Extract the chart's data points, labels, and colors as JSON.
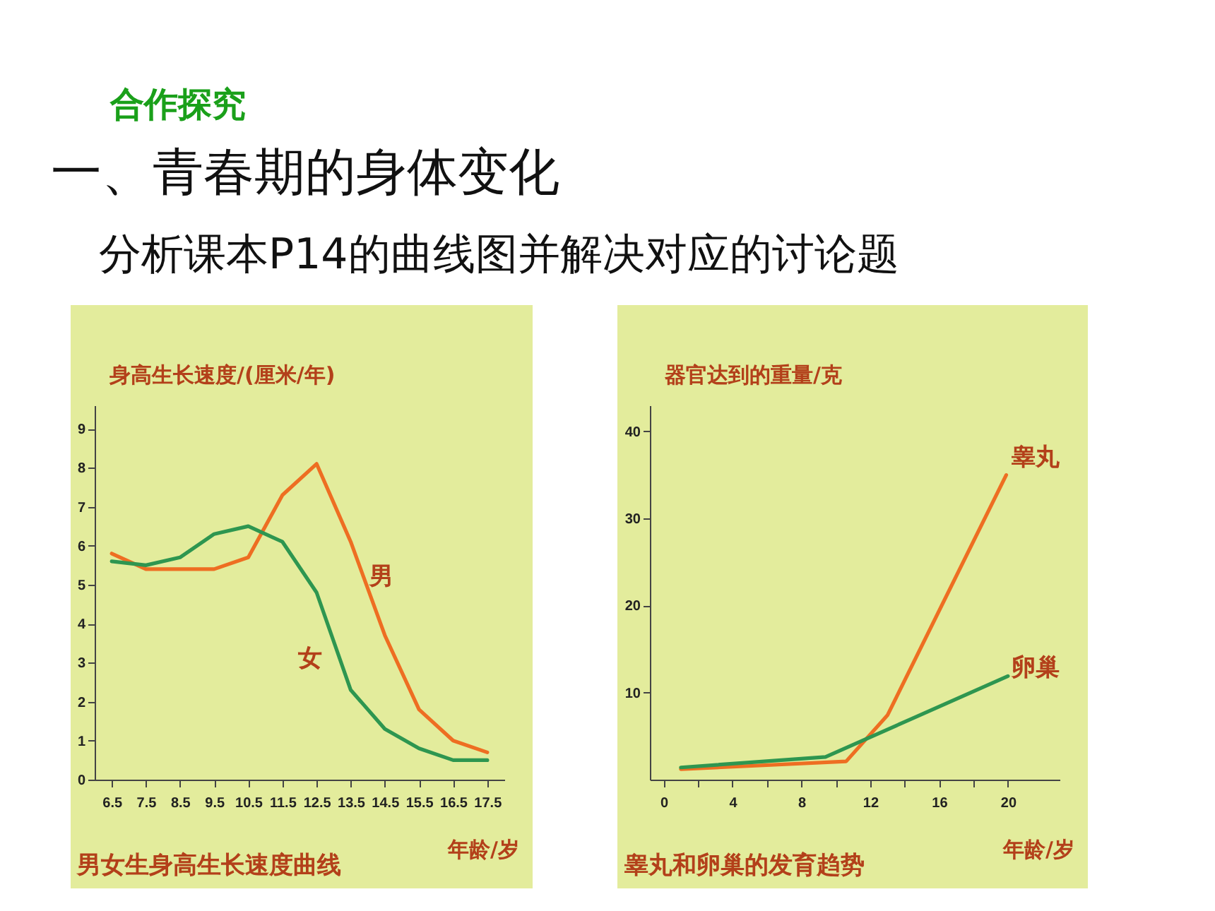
{
  "chart_data": [
    {
      "type": "line",
      "title": "男女生身高生长速度曲线",
      "annotations": [
        "合作探究",
        "一、青春期的身体变化",
        "分析课本P14的曲线图并解决对应的讨论题"
      ],
      "xlabel": "年龄/岁",
      "ylabel": "身高生长速度/(厘米/年)",
      "x": [
        6.5,
        7.5,
        8.5,
        9.5,
        10.5,
        11.5,
        12.5,
        13.5,
        14.5,
        15.5,
        16.5,
        17.5
      ],
      "xlim": [
        6.0,
        18.0
      ],
      "xticks": [
        6.5,
        7.5,
        8.5,
        9.5,
        10.5,
        11.5,
        12.5,
        13.5,
        14.5,
        15.5,
        16.5,
        17.5
      ],
      "ylim": [
        0,
        9.6
      ],
      "yticks": [
        0,
        1,
        2,
        3,
        4,
        5,
        6,
        7,
        8,
        9
      ],
      "grid": false,
      "legend": false,
      "line_style": "solid",
      "series": [
        {
          "name": "男",
          "color": "#ee6e22",
          "values": [
            5.8,
            5.4,
            5.4,
            5.4,
            5.7,
            7.3,
            8.1,
            6.1,
            3.7,
            1.8,
            1.0,
            0.7
          ]
        },
        {
          "name": "女",
          "color": "#2e9650",
          "values": [
            5.6,
            5.5,
            5.7,
            6.3,
            6.5,
            6.1,
            4.8,
            2.3,
            1.3,
            0.8,
            0.5,
            0.5
          ]
        }
      ]
    },
    {
      "type": "line",
      "title": "睾丸和卵巢的发育趋势",
      "xlabel": "年龄/岁",
      "ylabel": "器官达到的重量/克",
      "xlim": [
        -0.8,
        23
      ],
      "xticks": [
        0,
        {
          "value": 2,
          "label": null
        },
        4,
        {
          "value": 6,
          "label": null
        },
        8,
        {
          "value": 10,
          "label": null
        },
        12,
        {
          "value": 14,
          "label": null
        },
        16,
        {
          "value": 18,
          "label": null
        },
        20
      ],
      "ylim": [
        0,
        43
      ],
      "yticks": [
        10,
        20,
        30,
        40
      ],
      "grid": false,
      "legend": false,
      "line_style": "solid",
      "series": [
        {
          "name": "睾丸",
          "color": "#ee6e22",
          "x": [
            1,
            10.6,
            13,
            19.9
          ],
          "values": [
            1.2,
            2.1,
            7.4,
            35
          ]
        },
        {
          "name": "卵巢",
          "color": "#2e9650",
          "x": [
            1,
            9.4,
            20
          ],
          "values": [
            1.4,
            2.6,
            11.9
          ]
        }
      ]
    }
  ]
}
